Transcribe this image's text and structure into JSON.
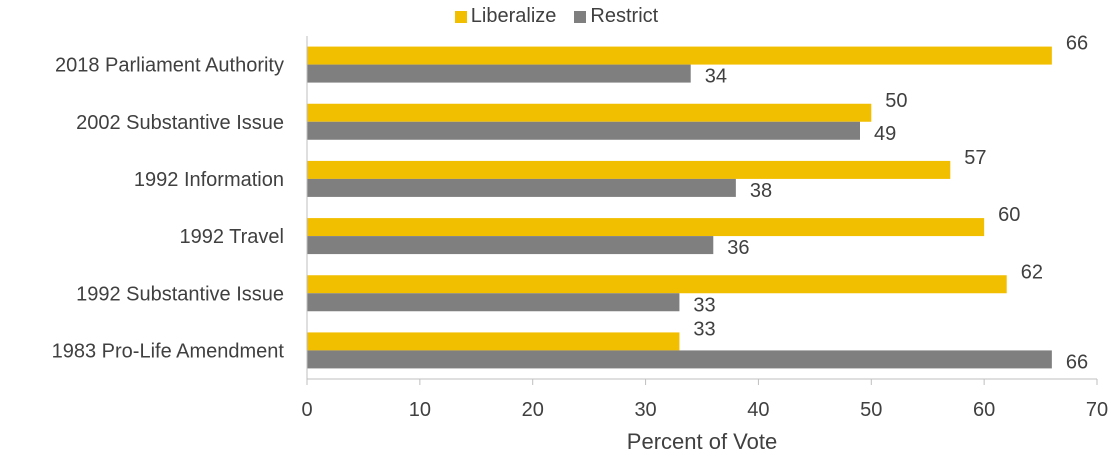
{
  "chart_data": {
    "type": "bar",
    "orientation": "horizontal",
    "categories": [
      "2018 Parliament Authority",
      "2002 Substantive Issue",
      "1992 Information",
      "1992 Travel ",
      "1992 Substantive Issue",
      "1983 Pro-Life Amendment"
    ],
    "series": [
      {
        "name": "Liberalize",
        "color": "#F2BE00",
        "values": [
          66,
          50,
          57,
          60,
          62,
          33
        ]
      },
      {
        "name": "Restrict",
        "color": "#7F7F7F",
        "values": [
          34,
          49,
          38,
          36,
          33,
          66
        ]
      }
    ],
    "xlabel": "Percent of Vote",
    "ylabel": "",
    "xlim": [
      0,
      70
    ],
    "xticks": [
      "0",
      "10",
      "20",
      "30",
      "40",
      "50",
      "60",
      "70"
    ],
    "legend_position": "top-center",
    "grid": false,
    "data_labels": true
  }
}
